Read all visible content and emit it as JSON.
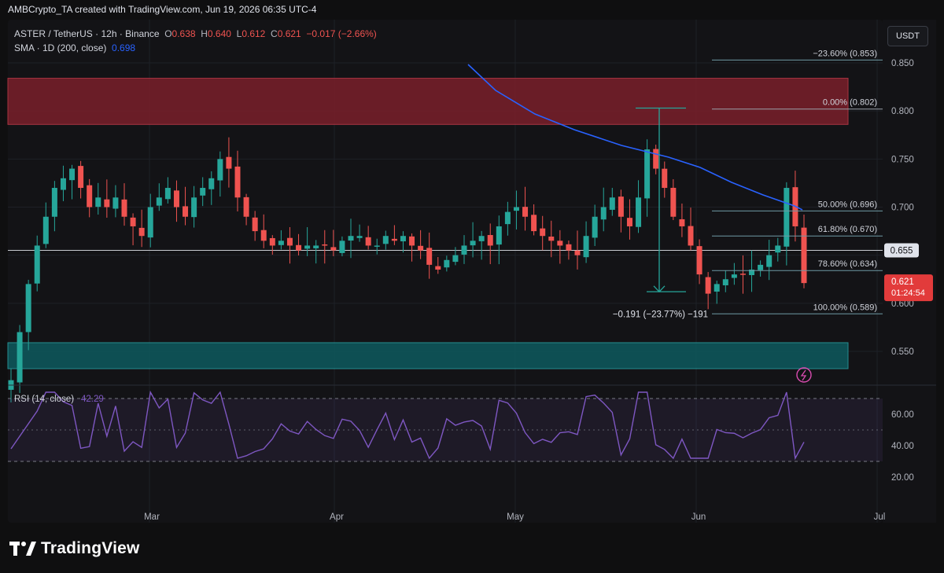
{
  "header": {
    "caption": "AMBCrypto_TA created with TradingView.com, Jun 19, 2026 06:35 UTC-4",
    "symbol": "ASTER / TetherUS · 12h · Binance",
    "open_label": "O",
    "open": "0.638",
    "high_label": "H",
    "high": "0.640",
    "low_label": "L",
    "low": "0.612",
    "close_label": "C",
    "close": "0.621",
    "change": "−0.017 (−2.66%)",
    "sma_label": "SMA · 1D (200, close)",
    "sma_value": "0.698",
    "currency": "USDT"
  },
  "price_axis": {
    "ticks": [
      "0.850",
      "0.800",
      "0.750",
      "0.700",
      "0.600",
      "0.550"
    ],
    "last_price": "0.621",
    "countdown": "01:24:54",
    "marker_price": "0.655"
  },
  "time_axis": {
    "ticks": [
      "Mar",
      "Apr",
      "May",
      "Jun",
      "Jul"
    ]
  },
  "fibonacci": {
    "levels": [
      {
        "label": "−23.60% (0.853)",
        "price": 0.853
      },
      {
        "label": "0.00% (0.802)",
        "price": 0.802
      },
      {
        "label": "50.00% (0.696)",
        "price": 0.696
      },
      {
        "label": "61.80% (0.670)",
        "price": 0.67
      },
      {
        "label": "78.60% (0.634)",
        "price": 0.634
      },
      {
        "label": "100.00% (0.589)",
        "price": 0.589
      }
    ]
  },
  "measure_label": "−0.191 (−23.77%) −191",
  "rsi": {
    "legend": "RSI (14, close)",
    "value": "42.29",
    "ticks": [
      "60.00",
      "40.00",
      "20.00"
    ]
  },
  "branding": {
    "name": "TradingView"
  },
  "colors": {
    "up": "#26a69a",
    "down": "#ef5350",
    "sma": "#2962ff",
    "supply_zone": "#7a1f2b",
    "demand_zone": "#0e5a5e",
    "rsi": "#7e57c2"
  },
  "chart_data": {
    "type": "candlestick",
    "title": "ASTER / TetherUS · 12h · Binance",
    "x": [
      "Mar",
      "Apr",
      "May",
      "Jun",
      "Jul"
    ],
    "ylim": [
      0.51,
      0.87
    ],
    "zones": [
      {
        "name": "supply",
        "from": 0.786,
        "to": 0.834
      },
      {
        "name": "demand",
        "from": 0.532,
        "to": 0.559
      }
    ],
    "horizontal_line": 0.655,
    "anchor_closes": [
      0.52,
      0.57,
      0.62,
      0.66,
      0.69,
      0.72,
      0.73,
      0.74,
      0.72,
      0.7,
      0.71,
      0.7,
      0.71,
      0.69,
      0.68,
      0.67,
      0.7,
      0.71,
      0.72,
      0.7,
      0.69,
      0.71,
      0.72,
      0.73,
      0.75,
      0.74,
      0.71,
      0.69,
      0.675,
      0.665,
      0.66,
      0.665,
      0.66,
      0.655,
      0.66,
      0.66,
      0.66,
      0.655,
      0.665,
      0.67,
      0.67,
      0.66,
      0.66,
      0.67,
      0.665,
      0.67,
      0.66,
      0.655,
      0.64,
      0.635,
      0.645,
      0.65,
      0.66,
      0.665,
      0.67,
      0.66,
      0.68,
      0.695,
      0.7,
      0.69,
      0.675,
      0.67,
      0.665,
      0.66,
      0.655,
      0.65,
      0.67,
      0.69,
      0.7,
      0.71,
      0.69,
      0.68,
      0.71,
      0.76,
      0.74,
      0.72,
      0.69,
      0.68,
      0.66,
      0.63,
      0.61,
      0.62,
      0.625,
      0.63,
      0.63,
      0.635,
      0.64,
      0.65,
      0.66,
      0.72,
      0.68,
      0.621
    ],
    "sma": [
      [
        0.845,
        0.845
      ],
      [
        0.83,
        0.83
      ],
      [
        0.815,
        0.815
      ],
      [
        0.8,
        0.8
      ],
      [
        0.785,
        0.785
      ],
      [
        0.77,
        0.77
      ],
      [
        0.755,
        0.755
      ],
      [
        0.74,
        0.74
      ],
      [
        0.725,
        0.725
      ],
      [
        0.71,
        0.71
      ],
      [
        0.7,
        0.7
      ],
      [
        0.698,
        0.698
      ]
    ],
    "rsi_y_range": [
      10,
      80
    ],
    "rsi_levels": [
      70,
      50,
      30
    ],
    "rsi_last": 42.29
  }
}
